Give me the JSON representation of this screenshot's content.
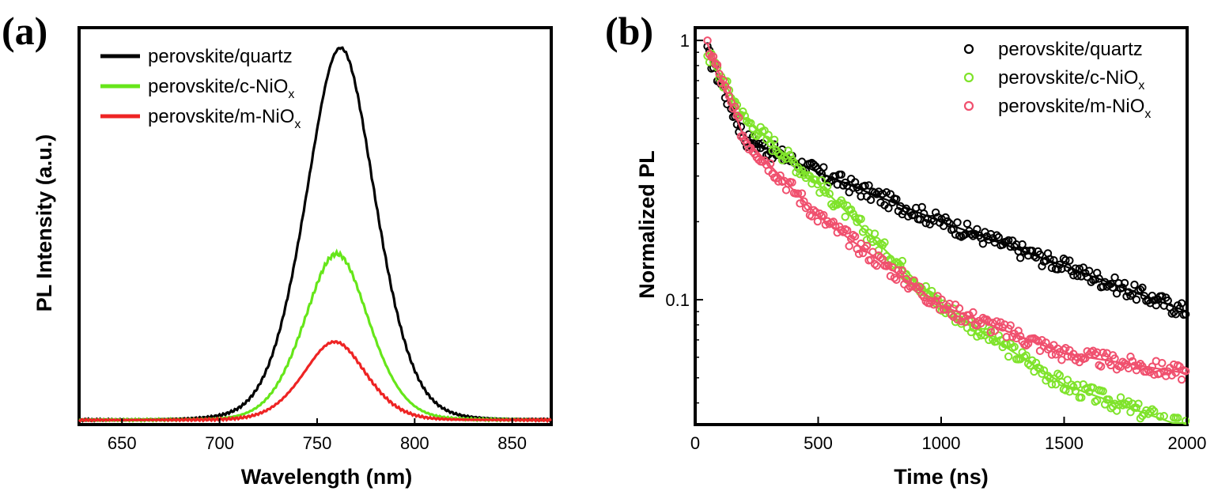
{
  "panel_a_label": "(a)",
  "panel_b_label": "(b)",
  "chart_data": [
    {
      "type": "line",
      "xlabel": "Wavelength (nm)",
      "ylabel": "PL Intensity (a.u.)",
      "xlim": [
        628,
        870
      ],
      "ylim": [
        0,
        1.06
      ],
      "xticks": [
        "650",
        "700",
        "750",
        "800",
        "850"
      ],
      "legend_position": "top-left",
      "series": [
        {
          "name": "perovskite/quartz",
          "subscript": "",
          "color": "#000000",
          "peak_x": 762,
          "peak_y": 1.0,
          "width": 30
        },
        {
          "name": "perovskite/c-NiO",
          "subscript": "x",
          "color": "#66e61a",
          "peak_x": 760,
          "peak_y": 0.45,
          "width": 28
        },
        {
          "name": "perovskite/m-NiO",
          "subscript": "x",
          "color": "#ee2424",
          "peak_x": 759,
          "peak_y": 0.215,
          "width": 27
        }
      ]
    },
    {
      "type": "scatter",
      "xlabel": "Time (ns)",
      "ylabel": "Normalized PL",
      "xlim": [
        0,
        2000
      ],
      "ylim": [
        0.033,
        1.12
      ],
      "yscale": "log",
      "xticks": [
        "0",
        "500",
        "1000",
        "1500",
        "2000"
      ],
      "yticks": [
        "1",
        "0.1"
      ],
      "legend_position": "top-right",
      "series": [
        {
          "name": "perovskite/quartz",
          "subscript": "",
          "color": "#000000",
          "values_at": [
            [
              50,
              0.9
            ],
            [
              200,
              0.42
            ],
            [
              500,
              0.31
            ],
            [
              1000,
              0.2
            ],
            [
              1500,
              0.135
            ],
            [
              2000,
              0.09
            ]
          ]
        },
        {
          "name": "perovskite/c-NiO",
          "subscript": "x",
          "color": "#7fe32b",
          "values_at": [
            [
              50,
              0.9
            ],
            [
              200,
              0.5
            ],
            [
              500,
              0.28
            ],
            [
              1000,
              0.095
            ],
            [
              1500,
              0.047
            ],
            [
              2000,
              0.032
            ]
          ]
        },
        {
          "name": "perovskite/m-NiO",
          "subscript": "x",
          "color": "#f0506e",
          "values_at": [
            [
              50,
              0.97
            ],
            [
              200,
              0.42
            ],
            [
              500,
              0.21
            ],
            [
              1000,
              0.095
            ],
            [
              1500,
              0.062
            ],
            [
              2000,
              0.052
            ]
          ]
        }
      ]
    }
  ]
}
